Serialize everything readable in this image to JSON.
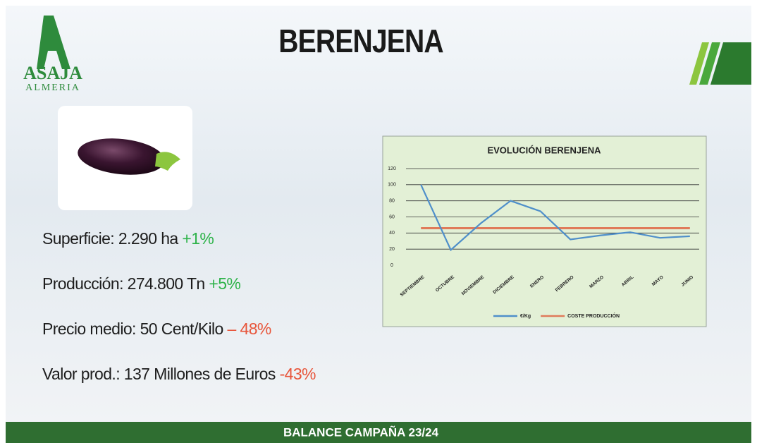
{
  "logo": {
    "name": "ASAJA",
    "place": "ALMERIA"
  },
  "title": "BERENJENA",
  "stats": [
    {
      "label": "Superficie: 2.290 ha",
      "change": "+1%",
      "change_color": "#2eb34a"
    },
    {
      "label": "Producción: 274.800 Tn",
      "change": "+5%",
      "change_color": "#2eb34a"
    },
    {
      "label": "Precio medio: 50 Cent/Kilo",
      "change": "– 48%",
      "change_color": "#e8553a"
    },
    {
      "label": "Valor prod.: 137 Millones de Euros",
      "change": "-43%",
      "change_color": "#e8553a"
    }
  ],
  "footer": "BALANCE CAMPAÑA 23/24",
  "chart_data": {
    "type": "line",
    "title": "EVOLUCIÓN BERENJENA",
    "categories": [
      "SEPTIEMBRE",
      "OCTUBRE",
      "NOVIEMBRE",
      "DICIEMBRE",
      "ENERO",
      "FEBRERO",
      "MARZO",
      "ABRIL",
      "MAYO",
      "JUNIO"
    ],
    "series": [
      {
        "name": "€/Kg",
        "color": "#4f8fca",
        "values": [
          100,
          19,
          52,
          80,
          67,
          32,
          37,
          41,
          34,
          36
        ]
      },
      {
        "name": "COSTE PRODUCCIÓN",
        "color": "#e07b5a",
        "values": [
          46,
          46,
          46,
          46,
          46,
          46,
          46,
          46,
          46,
          46
        ]
      }
    ],
    "ylim": [
      0,
      120
    ],
    "yticks": [
      0,
      20,
      40,
      60,
      80,
      100,
      120
    ],
    "grid": true
  }
}
